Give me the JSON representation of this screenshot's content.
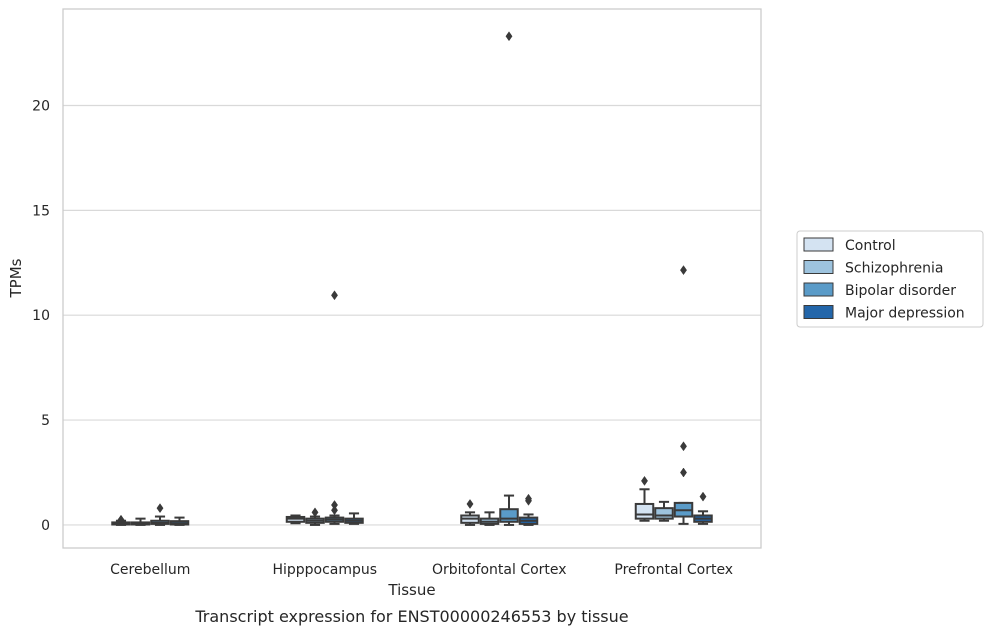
{
  "chart_data": {
    "type": "box",
    "title": "",
    "caption": "Transcript expression for ENST00000246553 by tissue",
    "xlabel": "Tissue",
    "ylabel": "TPMs",
    "ylim": [
      -1.1,
      24.6
    ],
    "yticks": [
      0,
      5,
      10,
      15,
      20
    ],
    "grid": "horizontal",
    "legend_position": "right",
    "categories": [
      "Cerebellum",
      "Hipppocampus",
      "Orbitofontal Cortex",
      "Prefrontal Cortex"
    ],
    "series": [
      {
        "name": "Control",
        "color": "#d4e3f2",
        "boxes": [
          {
            "whislo": 0.0,
            "q1": 0.02,
            "med": 0.07,
            "q3": 0.12,
            "whishi": 0.2,
            "fliers": [
              0.25
            ]
          },
          {
            "whislo": 0.08,
            "q1": 0.15,
            "med": 0.3,
            "q3": 0.38,
            "whishi": 0.45,
            "fliers": []
          },
          {
            "whislo": 0.0,
            "q1": 0.1,
            "med": 0.3,
            "q3": 0.45,
            "whishi": 0.6,
            "fliers": [
              1.0
            ]
          },
          {
            "whislo": 0.2,
            "q1": 0.3,
            "med": 0.5,
            "q3": 1.0,
            "whishi": 1.7,
            "fliers": [
              2.1
            ]
          }
        ]
      },
      {
        "name": "Schizophrenia",
        "color": "#9dc3de",
        "boxes": [
          {
            "whislo": 0.0,
            "q1": 0.02,
            "med": 0.05,
            "q3": 0.12,
            "whishi": 0.3,
            "fliers": []
          },
          {
            "whislo": 0.0,
            "q1": 0.1,
            "med": 0.2,
            "q3": 0.3,
            "whishi": 0.4,
            "fliers": [
              0.6
            ]
          },
          {
            "whislo": 0.0,
            "q1": 0.05,
            "med": 0.15,
            "q3": 0.3,
            "whishi": 0.6,
            "fliers": []
          },
          {
            "whislo": 0.2,
            "q1": 0.3,
            "med": 0.45,
            "q3": 0.8,
            "whishi": 1.1,
            "fliers": []
          }
        ]
      },
      {
        "name": "Bipolar disorder",
        "color": "#5a9bc8",
        "boxes": [
          {
            "whislo": 0.0,
            "q1": 0.05,
            "med": 0.1,
            "q3": 0.2,
            "whishi": 0.4,
            "fliers": [
              0.8
            ]
          },
          {
            "whislo": 0.05,
            "q1": 0.15,
            "med": 0.25,
            "q3": 0.35,
            "whishi": 0.45,
            "fliers": [
              0.7,
              0.95,
              10.95
            ]
          },
          {
            "whislo": 0.0,
            "q1": 0.15,
            "med": 0.3,
            "q3": 0.75,
            "whishi": 1.4,
            "fliers": [
              23.3
            ]
          },
          {
            "whislo": 0.05,
            "q1": 0.4,
            "med": 0.7,
            "q3": 1.05,
            "whishi": 1.05,
            "fliers": [
              2.5,
              3.75,
              12.15
            ]
          }
        ]
      },
      {
        "name": "Major depression",
        "color": "#2366aa",
        "boxes": [
          {
            "whislo": 0.0,
            "q1": 0.02,
            "med": 0.08,
            "q3": 0.18,
            "whishi": 0.35,
            "fliers": []
          },
          {
            "whislo": 0.05,
            "q1": 0.1,
            "med": 0.2,
            "q3": 0.3,
            "whishi": 0.55,
            "fliers": []
          },
          {
            "whislo": 0.0,
            "q1": 0.05,
            "med": 0.2,
            "q3": 0.35,
            "whishi": 0.5,
            "fliers": [
              1.15,
              1.25
            ]
          },
          {
            "whislo": 0.05,
            "q1": 0.15,
            "med": 0.3,
            "q3": 0.45,
            "whishi": 0.65,
            "fliers": [
              1.35
            ]
          }
        ]
      }
    ]
  }
}
